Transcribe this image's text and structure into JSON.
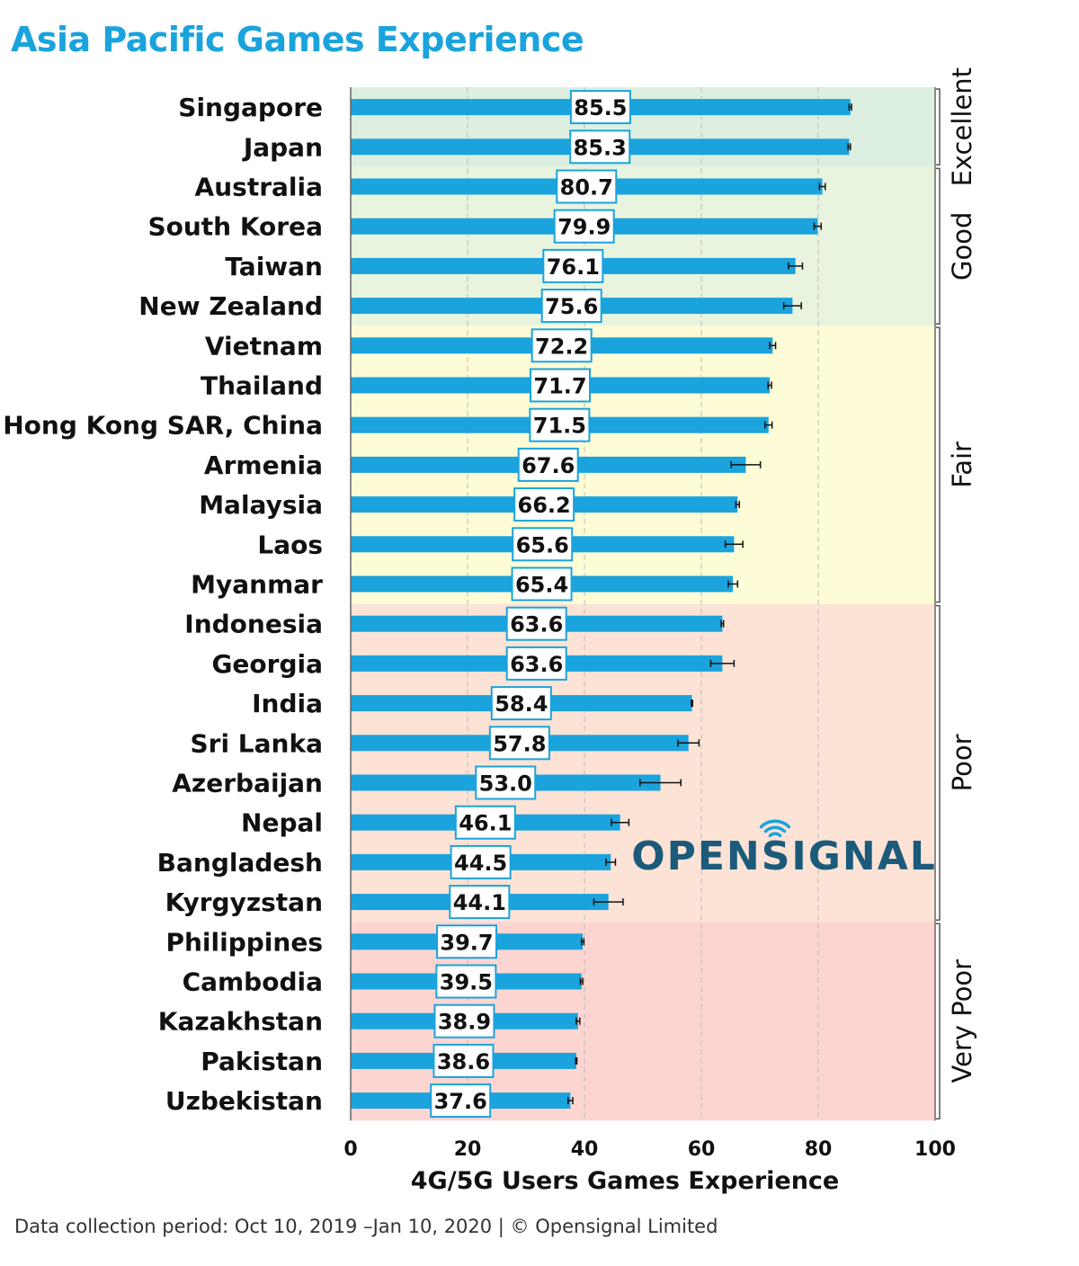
{
  "header": {
    "title": "Asia Pacific Games Experience"
  },
  "footer": {
    "note": "Data collection period: Oct 10, 2019 –Jan 10, 2020 | © Opensignal Limited"
  },
  "logo": {
    "text": "OPENSIGNAL",
    "color": "#1b5a7a"
  },
  "colors": {
    "bar": "#1aa3dc",
    "label_border": "#1aa3dc",
    "title": "#1aa3dc"
  },
  "chart_data": {
    "type": "bar",
    "orientation": "horizontal",
    "xlabel": "4G/5G Users Games Experience",
    "xlim": [
      0,
      100
    ],
    "xticks": [
      0,
      20,
      40,
      60,
      80,
      100
    ],
    "grid": true,
    "categories": [
      "Singapore",
      "Japan",
      "Australia",
      "South Korea",
      "Taiwan",
      "New Zealand",
      "Vietnam",
      "Thailand",
      "Hong Kong SAR, China",
      "Armenia",
      "Malaysia",
      "Laos",
      "Myanmar",
      "Indonesia",
      "Georgia",
      "India",
      "Sri Lanka",
      "Azerbaijan",
      "Nepal",
      "Bangladesh",
      "Kyrgyzstan",
      "Philippines",
      "Cambodia",
      "Kazakhstan",
      "Pakistan",
      "Uzbekistan"
    ],
    "values": [
      85.5,
      85.3,
      80.7,
      79.9,
      76.1,
      75.6,
      72.2,
      71.7,
      71.5,
      67.6,
      66.2,
      65.6,
      65.4,
      63.6,
      63.6,
      58.4,
      57.8,
      53.0,
      46.1,
      44.5,
      44.1,
      39.7,
      39.5,
      38.9,
      38.6,
      37.6
    ],
    "value_labels": [
      "85.5",
      "85.3",
      "80.7",
      "79.9",
      "76.1",
      "75.6",
      "72.2",
      "71.7",
      "71.5",
      "67.6",
      "66.2",
      "65.6",
      "65.4",
      "63.6",
      "63.6",
      "58.4",
      "57.8",
      "53.0",
      "46.1",
      "44.5",
      "44.1",
      "39.7",
      "39.5",
      "38.9",
      "38.6",
      "37.6"
    ],
    "error": [
      0.2,
      0.2,
      0.5,
      0.6,
      1.2,
      1.5,
      0.5,
      0.3,
      0.6,
      2.5,
      0.3,
      1.5,
      0.8,
      0.2,
      2.0,
      0.1,
      1.8,
      3.5,
      1.5,
      0.8,
      2.5,
      0.2,
      0.2,
      0.3,
      0.1,
      0.4
    ],
    "bands": [
      {
        "name": "Excellent",
        "from": 0,
        "to": 1,
        "color": "#dcefe0"
      },
      {
        "name": "Good",
        "from": 2,
        "to": 5,
        "color": "#e8f4de"
      },
      {
        "name": "Fair",
        "from": 6,
        "to": 12,
        "color": "#fdfcd6"
      },
      {
        "name": "Poor",
        "from": 13,
        "to": 20,
        "color": "#fce3d6"
      },
      {
        "name": "Very Poor",
        "from": 21,
        "to": 25,
        "color": "#fcd5d1"
      }
    ]
  }
}
